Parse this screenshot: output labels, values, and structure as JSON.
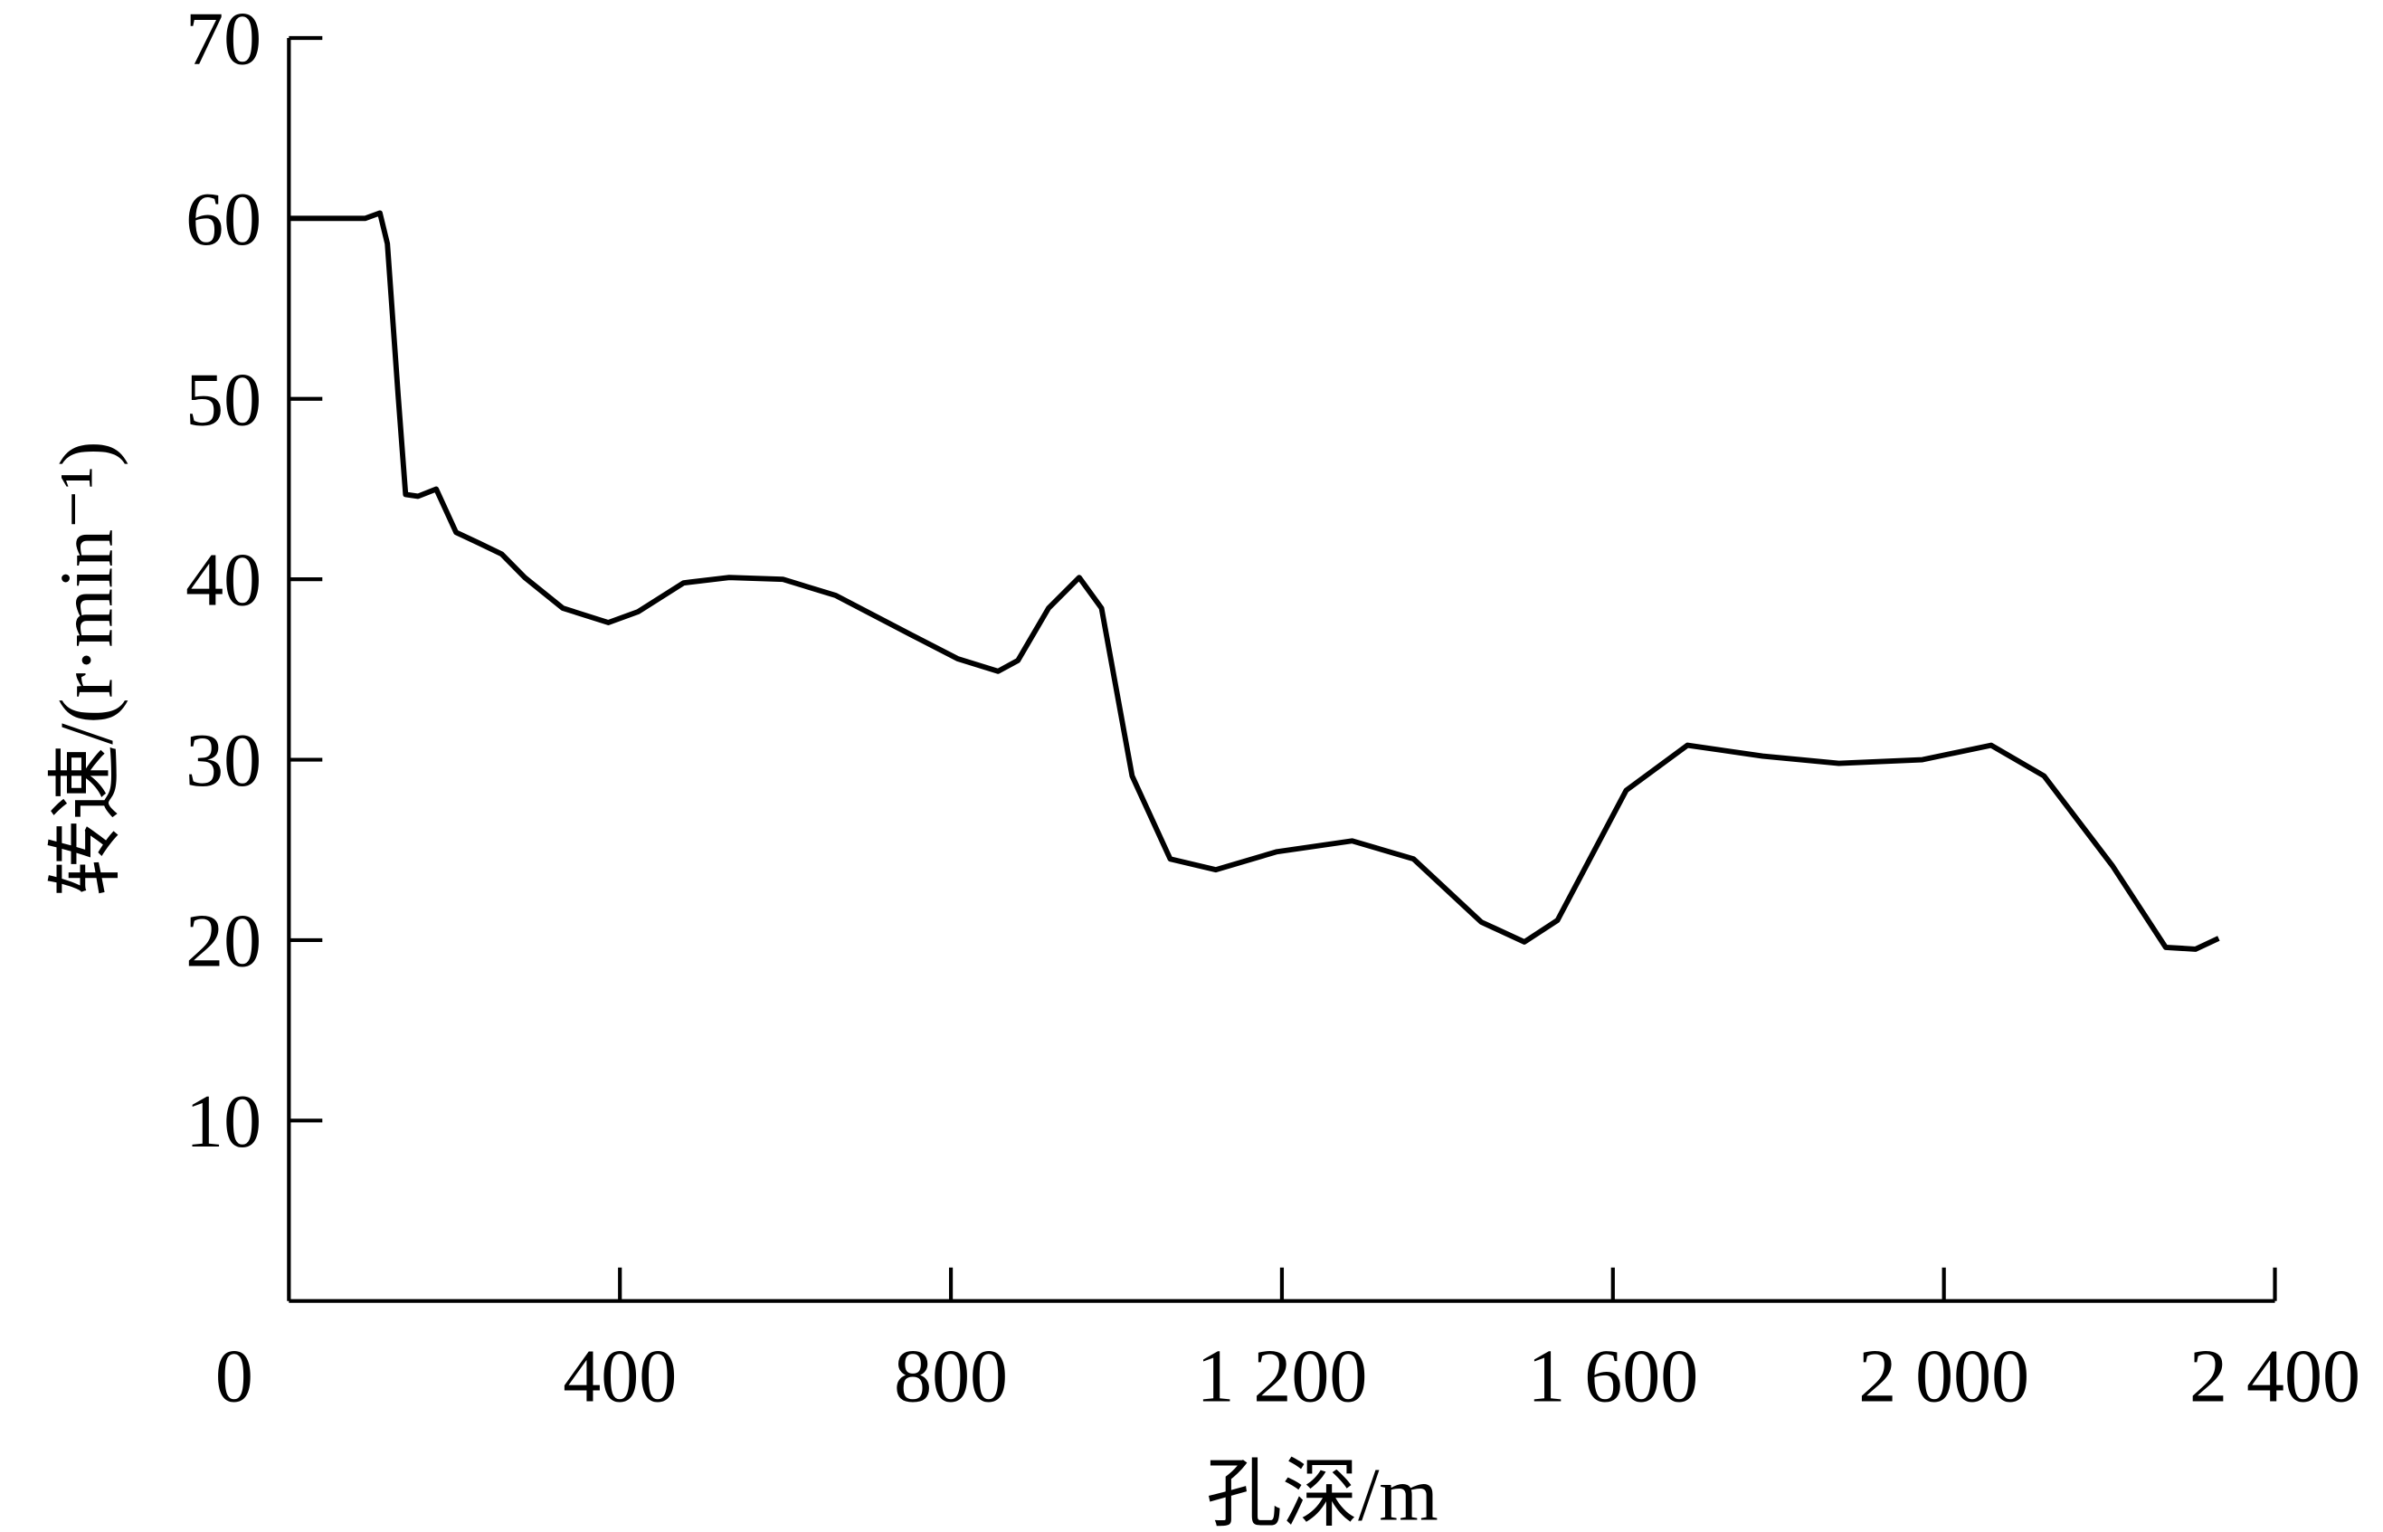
{
  "chart_data": {
    "type": "line",
    "x_label": "孔深/m",
    "y_label": "转速/(r·min⁻¹)",
    "xlim": [
      0,
      2400
    ],
    "ylim": [
      0,
      70
    ],
    "xticks": [
      0,
      400,
      800,
      {
        "value": 1200,
        "label": "1 200"
      },
      {
        "value": 1600,
        "label": "1 600"
      },
      {
        "value": 2000,
        "label": "2 000"
      },
      {
        "value": 2400,
        "label": "2 400"
      }
    ],
    "yticks": [
      10,
      20,
      30,
      40,
      50,
      60,
      70
    ],
    "color": "#000000",
    "x": [
      0,
      92,
      110,
      119,
      132,
      141,
      156,
      178,
      202,
      230,
      257,
      285,
      331,
      386,
      422,
      477,
      532,
      597,
      661,
      753,
      808,
      857,
      881,
      918,
      955,
      982,
      1019,
      1065,
      1120,
      1194,
      1285,
      1359,
      1441,
      1493,
      1533,
      1616,
      1690,
      1781,
      1873,
      1974,
      2057,
      2121,
      2204,
      2268,
      2304,
      2332
    ],
    "values": [
      60,
      60,
      60.3,
      58.6,
      50.2,
      44.7,
      44.6,
      45,
      42.6,
      42,
      41.4,
      40.1,
      38.4,
      37.6,
      38.2,
      39.8,
      40.1,
      40,
      39.1,
      36.9,
      35.6,
      34.9,
      35.5,
      38.4,
      40.1,
      38.4,
      29.1,
      24.5,
      23.9,
      24.9,
      25.5,
      24.5,
      21,
      19.9,
      21.1,
      28.3,
      30.8,
      30.2,
      29.8,
      30,
      30.8,
      29.1,
      24.1,
      19.6,
      19.5,
      20.1
    ]
  }
}
